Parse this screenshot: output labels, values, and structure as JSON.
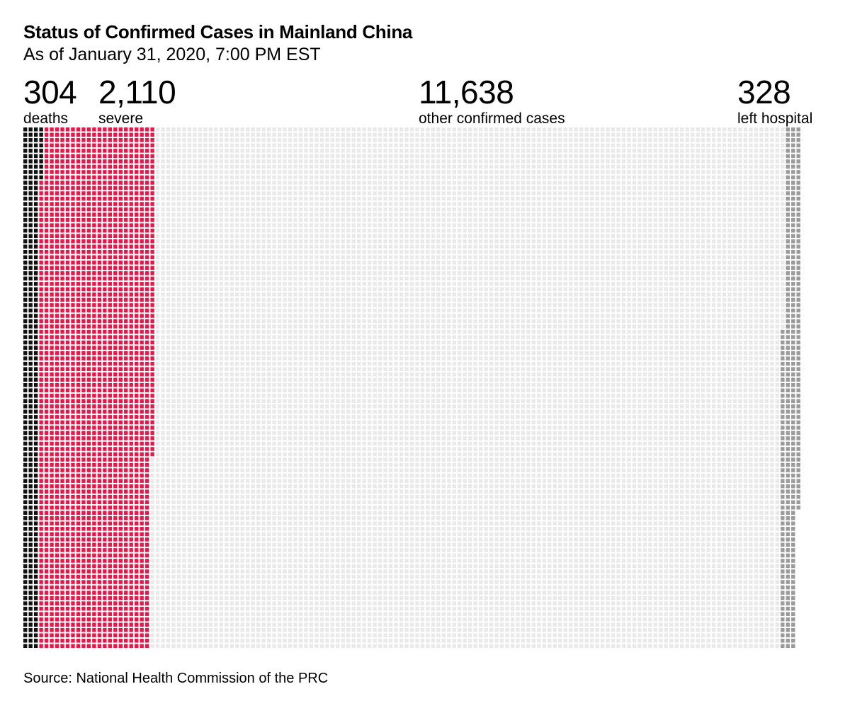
{
  "title": "Status of Confirmed Cases in Mainland China",
  "subtitle": "As of January 31, 2020, 7:00 PM EST",
  "source": "Source: National Health Commission of the PRC",
  "stats": [
    {
      "value": "304",
      "label": "deaths"
    },
    {
      "value": "2,110",
      "label": "severe"
    },
    {
      "value": "11,638",
      "label": "other confirmed cases"
    },
    {
      "value": "328",
      "label": "left hospital"
    }
  ],
  "chart_data": {
    "type": "waffle",
    "unit": "1 square = 1 confirmed case",
    "rows": 98,
    "categories": [
      "deaths",
      "severe",
      "other confirmed cases",
      "left hospital"
    ],
    "values": [
      304,
      2110,
      11638,
      328
    ],
    "colors": {
      "deaths": "#111111",
      "severe": "#e8174a",
      "other confirmed cases": "#e9e9e9",
      "left hospital": "#9a9a9a"
    }
  }
}
